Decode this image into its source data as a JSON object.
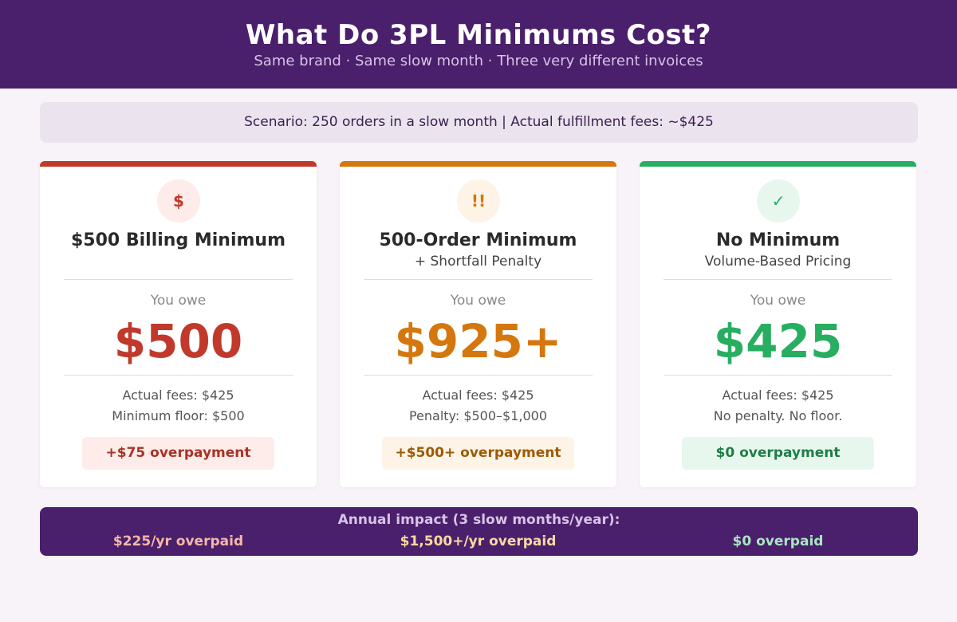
{
  "header": {
    "title": "What Do 3PL Minimums Cost?",
    "subtitle": "Same brand  ·  Same slow month  ·  Three very different invoices"
  },
  "scenario": {
    "text": "Scenario:  250 orders in a slow month   |   Actual fulfillment fees: ~$425"
  },
  "cards": [
    {
      "icon": "dollar-icon",
      "icon_glyph": "$",
      "title": "$500 Billing Minimum",
      "subtitle": "",
      "owe_label": "You owe",
      "amount": "$500",
      "line1": "Actual fees: $425",
      "line2": "Minimum floor: $500",
      "pill": "+$75 overpayment",
      "accent": "#c0392b",
      "icon_bg": "#fdecea",
      "pill_bg": "#fdecea",
      "pill_color": "#a93226"
    },
    {
      "icon": "double-exclamation-icon",
      "icon_glyph": "!!",
      "title": "500-Order Minimum",
      "subtitle": "+ Shortfall Penalty",
      "owe_label": "You owe",
      "amount": "$925+",
      "line1": "Actual fees: $425",
      "line2": "Penalty: $500–$1,000",
      "pill": "+$500+ overpayment",
      "accent": "#d4770f",
      "icon_bg": "#fdf3e6",
      "pill_bg": "#fdf3e6",
      "pill_color": "#9c5a06"
    },
    {
      "icon": "check-icon",
      "icon_glyph": "✓",
      "title": "No Minimum",
      "subtitle": "Volume-Based Pricing",
      "owe_label": "You owe",
      "amount": "$425",
      "line1": "Actual fees: $425",
      "line2": "No penalty. No floor.",
      "pill": "$0 overpayment",
      "accent": "#27ae60",
      "icon_bg": "#e8f7ee",
      "pill_bg": "#e8f7ee",
      "pill_color": "#1e7e45"
    }
  ],
  "annual": {
    "label": "Annual impact (3 slow months/year):",
    "values": [
      {
        "text": "$225/yr overpaid",
        "color": "#f5b7a8"
      },
      {
        "text": "$1,500+/yr overpaid",
        "color": "#fbd9a0"
      },
      {
        "text": "$0 overpaid",
        "color": "#a9e6c0"
      }
    ]
  }
}
